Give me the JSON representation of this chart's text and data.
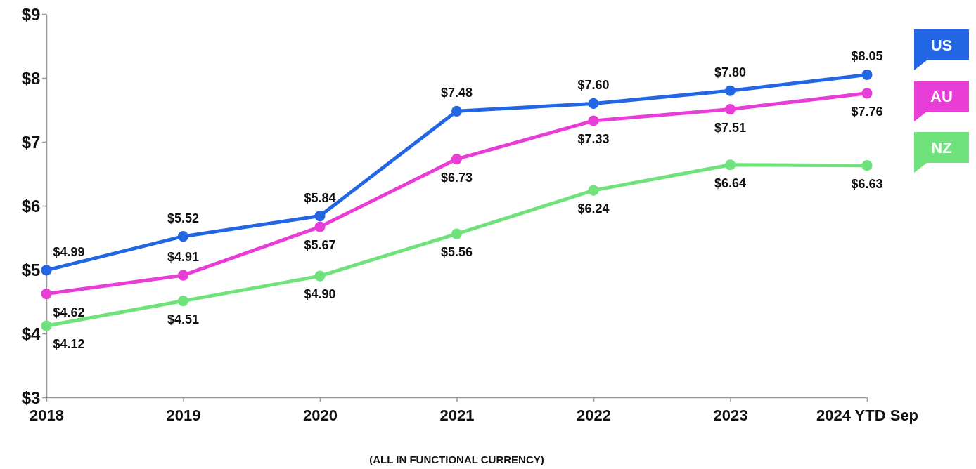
{
  "chart_data": {
    "type": "line",
    "xlabel": "(ALL IN FUNCTIONAL CURRENCY)",
    "categories": [
      "2018",
      "2019",
      "2020",
      "2021",
      "2022",
      "2023",
      "2024 YTD Sep"
    ],
    "ylim": [
      3,
      9
    ],
    "yticks": [
      {
        "value": 3,
        "label": "$3"
      },
      {
        "value": 4,
        "label": "$4"
      },
      {
        "value": 5,
        "label": "$5"
      },
      {
        "value": 6,
        "label": "$6"
      },
      {
        "value": 7,
        "label": "$7"
      },
      {
        "value": 8,
        "label": "$8"
      },
      {
        "value": 9,
        "label": "$9"
      }
    ],
    "grid": false,
    "legend": "right",
    "marker": "circle",
    "line_style": "solid",
    "series": [
      {
        "name": "US",
        "color": "#2266e3",
        "values": [
          4.99,
          5.52,
          5.84,
          7.48,
          7.6,
          7.8,
          8.05
        ],
        "value_labels": [
          "$4.99",
          "$5.52",
          "$5.84",
          "$7.48",
          "$7.60",
          "$7.80",
          "$8.05"
        ]
      },
      {
        "name": "AU",
        "color": "#e83dd6",
        "values": [
          4.62,
          4.91,
          5.67,
          6.73,
          7.33,
          7.51,
          7.76
        ],
        "value_labels": [
          "$4.62",
          "$4.91",
          "$5.67",
          "$6.73",
          "$7.33",
          "$7.51",
          "$7.76"
        ]
      },
      {
        "name": "NZ",
        "color": "#6fe27c",
        "values": [
          4.12,
          4.51,
          4.9,
          5.56,
          6.24,
          6.64,
          6.63
        ],
        "value_labels": [
          "$4.12",
          "$4.51",
          "$4.90",
          "$5.56",
          "$6.24",
          "$6.64",
          "$6.63"
        ]
      }
    ]
  }
}
